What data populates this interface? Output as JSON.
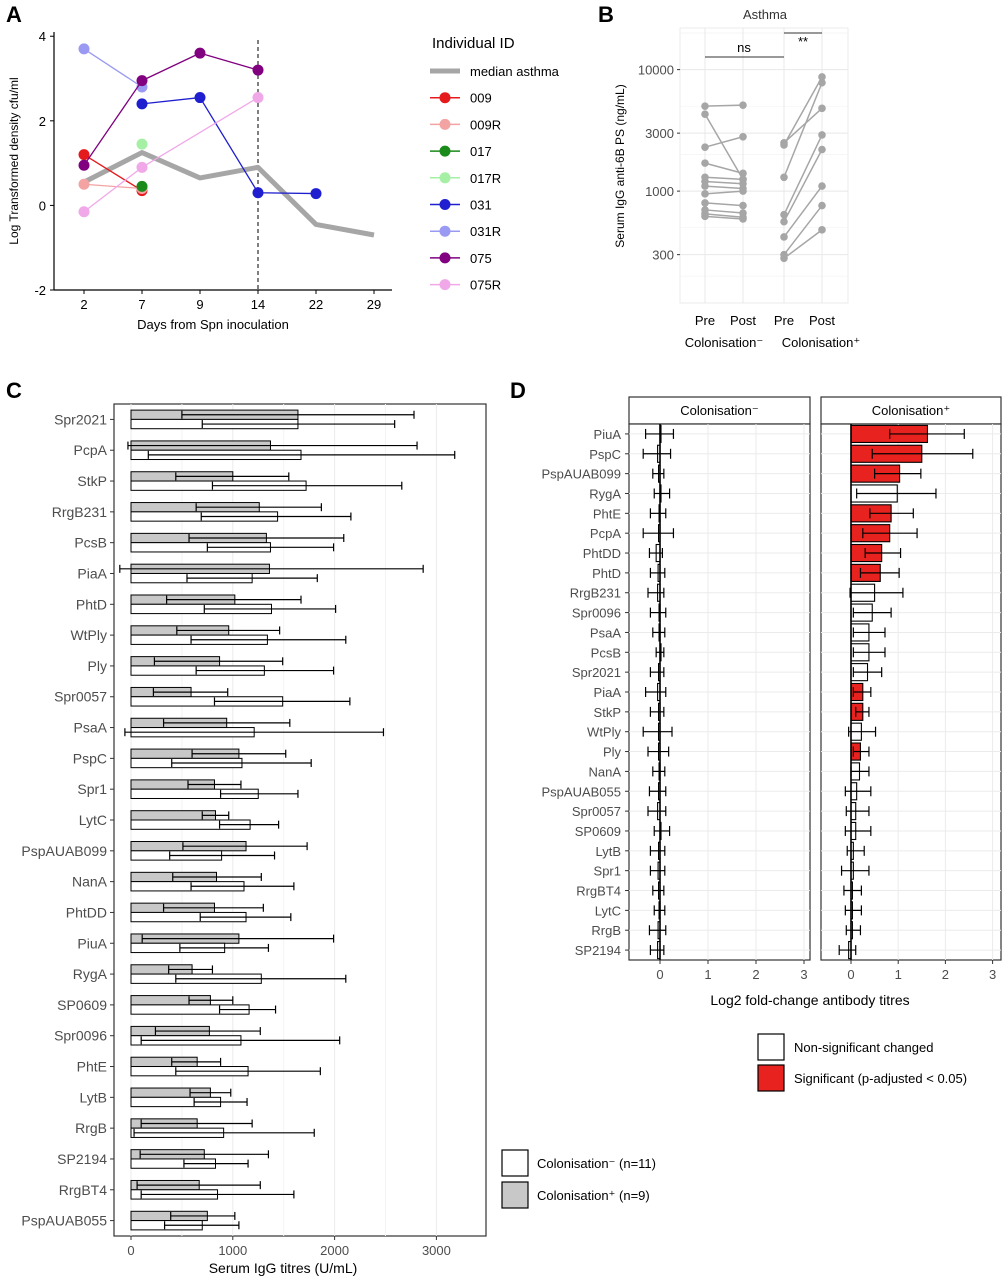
{
  "colors": {
    "c009": "#e41a1c",
    "c009R": "#f4a3a3",
    "c017": "#1a8a1a",
    "c017R": "#a6f0a6",
    "c031": "#1f1fcf",
    "c031R": "#9a9af2",
    "c075": "#800080",
    "c075R": "#f0a8e8",
    "median": "#a6a6a6",
    "grid": "#ebebeb",
    "gray_bar": "#c8c8c8",
    "red_bar": "#e8221e",
    "points": "#a6a6a6"
  },
  "chart_data": [
    {
      "panel": "A",
      "type": "line",
      "xlabel": "Days from Spn inoculation",
      "ylabel": "Log Transformed density cfu/ml",
      "x_categories": [
        "2",
        "7",
        "9",
        "14",
        "22",
        "29"
      ],
      "y_ticks": [
        "-2",
        "0",
        "2",
        "4"
      ],
      "ylim": [
        -2,
        4.1
      ],
      "vline_at": "14",
      "legend_title": "Individual ID",
      "legend_position": "right",
      "series": [
        {
          "name": "median asthma",
          "color_key": "median",
          "points": [
            [
              "2",
              0.55
            ],
            [
              "7",
              1.25
            ],
            [
              "9",
              0.65
            ],
            [
              "14",
              0.9
            ],
            [
              "22",
              -0.45
            ],
            [
              "29",
              -0.7
            ]
          ]
        },
        {
          "name": "009",
          "color_key": "c009",
          "points": [
            [
              "2",
              1.2
            ],
            [
              "7",
              0.35
            ]
          ]
        },
        {
          "name": "009R",
          "color_key": "c009R",
          "points": [
            [
              "2",
              0.5
            ],
            [
              "7",
              0.4
            ]
          ]
        },
        {
          "name": "017",
          "color_key": "c017",
          "points": [
            [
              "7",
              0.45
            ]
          ]
        },
        {
          "name": "017R",
          "color_key": "c017R",
          "points": [
            [
              "7",
              1.45
            ]
          ]
        },
        {
          "name": "031",
          "color_key": "c031",
          "points": [
            [
              "7",
              2.4
            ],
            [
              "9",
              2.55
            ],
            [
              "14",
              0.3
            ],
            [
              "22",
              0.28
            ]
          ]
        },
        {
          "name": "031R",
          "color_key": "c031R",
          "points": [
            [
              "2",
              3.7
            ],
            [
              "7",
              2.8
            ]
          ]
        },
        {
          "name": "075",
          "color_key": "c075",
          "points": [
            [
              "2",
              0.95
            ],
            [
              "7",
              2.95
            ],
            [
              "9",
              3.6
            ],
            [
              "14",
              3.2
            ]
          ]
        },
        {
          "name": "075R",
          "color_key": "c075R",
          "points": [
            [
              "2",
              -0.15
            ],
            [
              "7",
              0.9
            ],
            [
              "14",
              2.55
            ]
          ]
        }
      ]
    },
    {
      "panel": "B",
      "type": "scatter",
      "title": "Asthma",
      "ylabel": "Serum IgG anti-6B PS (ng/mL)",
      "y_scale": "log",
      "y_ticks": [
        300,
        1000,
        3000,
        10000
      ],
      "y_tick_labels": [
        "300",
        "1000",
        "3000",
        "10000"
      ],
      "ylim": [
        120,
        22000
      ],
      "x_labels": [
        "Pre",
        "Post",
        "Pre",
        "Post"
      ],
      "group_labels": [
        "Colonisation⁻",
        "Colonisation⁺"
      ],
      "significance": [
        {
          "label": "ns"
        },
        {
          "label": "**"
        }
      ],
      "paired_neg": [
        [
          620,
          590
        ],
        [
          650,
          610
        ],
        [
          700,
          660
        ],
        [
          800,
          760
        ],
        [
          950,
          1000
        ],
        [
          1100,
          1050
        ],
        [
          1200,
          1150
        ],
        [
          1300,
          1250
        ],
        [
          1700,
          1400
        ],
        [
          2300,
          2800
        ],
        [
          4300,
          1250
        ],
        [
          5000,
          5100
        ]
      ],
      "paired_pos": [
        [
          280,
          480
        ],
        [
          300,
          760
        ],
        [
          420,
          1100
        ],
        [
          560,
          2200
        ],
        [
          640,
          2900
        ],
        [
          1300,
          7800
        ],
        [
          2400,
          8700
        ],
        [
          2500,
          4800
        ]
      ]
    },
    {
      "panel": "C",
      "type": "bar",
      "orientation": "horizontal",
      "xlabel": "Serum IgG titres (U/mL)",
      "x_ticks": [
        0,
        1000,
        2000,
        3000
      ],
      "xlim": [
        -30,
        3500
      ],
      "categories": [
        "Spr2021",
        "PcpA",
        "StkP",
        "RrgB231",
        "PcsB",
        "PiaA",
        "PhtD",
        "WtPly",
        "Ply",
        "Spr0057",
        "PsaA",
        "PspC",
        "Spr1",
        "LytC",
        "PspAUAB099",
        "NanA",
        "PhtDD",
        "PiuA",
        "RygA",
        "SP0609",
        "Spr0096",
        "PhtE",
        "LytB",
        "RrgB",
        "SP2194",
        "RrgBT4",
        "PspAUAB055"
      ],
      "series": [
        {
          "name": "Colonisation⁺ (n=9)",
          "color_key": "gray_bar",
          "values": [
            1640,
            1370,
            1000,
            1260,
            1330,
            1360,
            1020,
            960,
            870,
            590,
            940,
            1060,
            820,
            830,
            1130,
            840,
            820,
            1060,
            600,
            780,
            770,
            650,
            780,
            650,
            720,
            670,
            750
          ],
          "err_low": [
            500,
            -30,
            440,
            640,
            570,
            -110,
            350,
            450,
            230,
            220,
            320,
            600,
            560,
            700,
            510,
            410,
            320,
            110,
            370,
            570,
            240,
            400,
            580,
            100,
            90,
            60,
            390
          ],
          "err_high": [
            2780,
            2810,
            1550,
            1870,
            2090,
            2870,
            1670,
            1460,
            1490,
            950,
            1560,
            1520,
            1080,
            960,
            1730,
            1280,
            1300,
            1990,
            800,
            1000,
            1270,
            880,
            980,
            1190,
            1350,
            1270,
            1020
          ]
        },
        {
          "name": "Colonisation⁻ (n=11)",
          "color_key": "white",
          "values": [
            1640,
            1670,
            1720,
            1440,
            1370,
            1190,
            1380,
            1340,
            1310,
            1490,
            1210,
            1090,
            1250,
            1170,
            890,
            1110,
            1130,
            920,
            1280,
            1160,
            1080,
            1150,
            880,
            910,
            830,
            850,
            700
          ],
          "err_low": [
            700,
            170,
            800,
            690,
            750,
            550,
            720,
            590,
            640,
            820,
            -60,
            400,
            880,
            870,
            380,
            590,
            680,
            480,
            440,
            870,
            100,
            440,
            620,
            30,
            520,
            100,
            330
          ],
          "err_high": [
            2590,
            3180,
            2660,
            2160,
            1990,
            1830,
            2010,
            2110,
            1990,
            2150,
            2480,
            1770,
            1640,
            1450,
            1410,
            1600,
            1570,
            1350,
            2110,
            1420,
            2050,
            1860,
            1140,
            1800,
            1150,
            1600,
            1060
          ]
        }
      ]
    },
    {
      "panel": "D",
      "type": "bar",
      "orientation": "horizontal",
      "xlabel": "Log2 fold-change antibody titres",
      "x_ticks": [
        0,
        1,
        2,
        3
      ],
      "xlim": [
        -0.55,
        3.2
      ],
      "facets": [
        "Colonisation⁻",
        "Colonisation⁺"
      ],
      "categories": [
        "PiuA",
        "PspC",
        "PspAUAB099",
        "RygA",
        "PhtE",
        "PcpA",
        "PhtDD",
        "PhtD",
        "RrgB231",
        "Spr0096",
        "PsaA",
        "PcsB",
        "Spr2021",
        "PiaA",
        "StkP",
        "WtPly",
        "Ply",
        "NanA",
        "PspAUAB055",
        "Spr0057",
        "SP0609",
        "LytB",
        "Spr1",
        "RrgBT4",
        "LytC",
        "RrgB",
        "SP2194"
      ],
      "neg": {
        "values": [
          0.0,
          -0.05,
          -0.03,
          0.02,
          -0.02,
          -0.03,
          -0.08,
          -0.04,
          -0.05,
          -0.02,
          -0.02,
          0.0,
          -0.03,
          -0.05,
          -0.03,
          -0.03,
          -0.03,
          -0.02,
          -0.03,
          -0.05,
          0.0,
          -0.03,
          -0.04,
          -0.03,
          -0.02,
          -0.04,
          -0.05
        ],
        "err_low": [
          -0.3,
          -0.35,
          -0.15,
          -0.12,
          -0.2,
          -0.35,
          -0.22,
          -0.2,
          -0.25,
          -0.2,
          -0.15,
          -0.08,
          -0.2,
          -0.3,
          -0.2,
          -0.35,
          -0.25,
          -0.15,
          -0.22,
          -0.25,
          -0.12,
          -0.2,
          -0.2,
          -0.15,
          -0.12,
          -0.22,
          -0.2
        ],
        "err_high": [
          0.28,
          0.22,
          0.08,
          0.2,
          0.12,
          0.28,
          0.05,
          0.1,
          0.08,
          0.12,
          0.1,
          0.08,
          0.08,
          0.12,
          0.08,
          0.25,
          0.18,
          0.1,
          0.12,
          0.12,
          0.2,
          0.1,
          0.1,
          0.08,
          0.1,
          0.12,
          0.08
        ]
      },
      "pos": {
        "values": [
          1.62,
          1.5,
          1.03,
          0.98,
          0.85,
          0.82,
          0.65,
          0.62,
          0.5,
          0.45,
          0.38,
          0.38,
          0.35,
          0.25,
          0.25,
          0.22,
          0.2,
          0.18,
          0.12,
          0.1,
          0.1,
          0.05,
          0.05,
          0.03,
          0.03,
          0.03,
          -0.05
        ],
        "err_low": [
          0.82,
          0.45,
          0.5,
          0.12,
          0.4,
          0.25,
          0.3,
          0.2,
          -0.02,
          0.05,
          0.05,
          0.05,
          0.05,
          0.05,
          0.1,
          -0.05,
          0.05,
          0.0,
          -0.12,
          -0.1,
          -0.12,
          -0.08,
          -0.2,
          -0.15,
          -0.12,
          -0.1,
          -0.25
        ],
        "err_high": [
          2.4,
          2.58,
          1.48,
          1.8,
          1.32,
          1.4,
          1.05,
          1.02,
          1.1,
          0.85,
          0.72,
          0.72,
          0.65,
          0.42,
          0.38,
          0.52,
          0.38,
          0.38,
          0.42,
          0.38,
          0.42,
          0.28,
          0.38,
          0.22,
          0.22,
          0.2,
          0.1
        ]
      },
      "significant": [
        "PiuA",
        "PspC",
        "PspAUAB099",
        "PhtE",
        "PcpA",
        "PhtDD",
        "PhtD",
        "PiaA",
        "StkP",
        "Ply"
      ]
    }
  ],
  "legend_c": [
    {
      "label": "Colonisation⁻ (n=11)",
      "color_key": "white"
    },
    {
      "label": "Colonisation⁺ (n=9)",
      "color_key": "gray_bar"
    }
  ],
  "legend_d": [
    {
      "label": "Non-significant changed",
      "color_key": "white"
    },
    {
      "label": "Significant (p-adjusted < 0.05)",
      "color_key": "red_bar"
    }
  ],
  "panel_labels": [
    "A",
    "B",
    "C",
    "D"
  ]
}
